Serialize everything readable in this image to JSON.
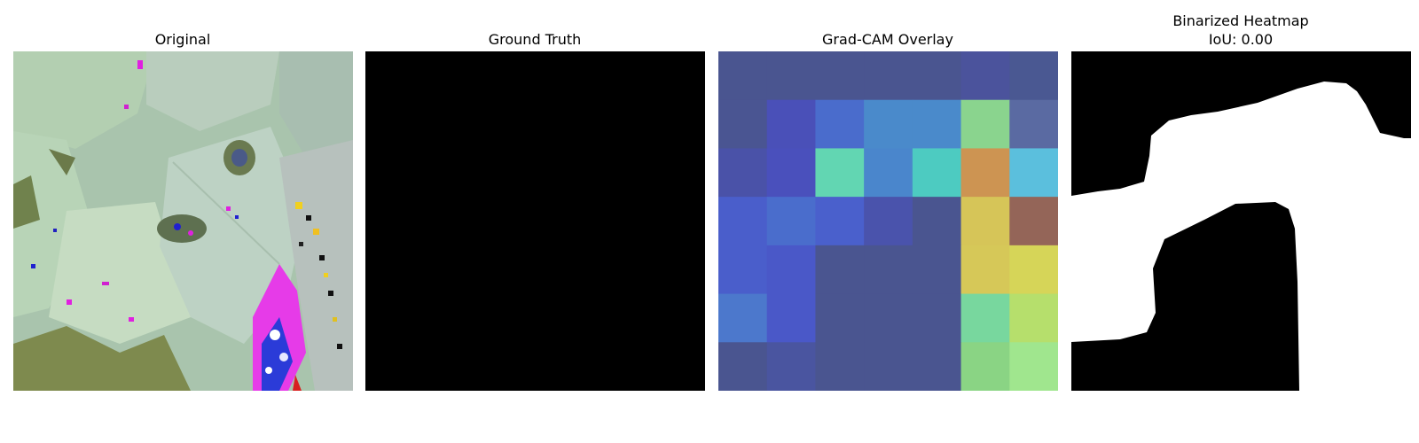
{
  "panels": {
    "original": {
      "title": "Original"
    },
    "ground_truth": {
      "title": "Ground Truth"
    },
    "gradcam": {
      "title": "Grad-CAM Overlay",
      "grid": [
        [
          "#4a5590",
          "#4a5590",
          "#4a5590",
          "#4a5590",
          "#4a5590",
          "#4b539c",
          "#4a5892"
        ],
        [
          "#4a5592",
          "#4a50b8",
          "#4a6ccc",
          "#4a8acb",
          "#4a8acb",
          "#8ad48e",
          "#5a6aa2"
        ],
        [
          "#4a52a8",
          "#4a50bc",
          "#62d6b2",
          "#4a86cc",
          "#4dcbc1",
          "#cd9452",
          "#5bbfdd"
        ],
        [
          "#4a5ecb",
          "#4a6dcc",
          "#4a60cc",
          "#4a53ac",
          "#4a5590",
          "#d6c558",
          "#946558"
        ],
        [
          "#4a5ecb",
          "#4a58c8",
          "#4a5590",
          "#4a5590",
          "#4a5590",
          "#d6c858",
          "#d6d558"
        ],
        [
          "#4c78cc",
          "#4a58c8",
          "#4a5590",
          "#4a5590",
          "#4a5590",
          "#78d79e",
          "#b6df6c"
        ],
        [
          "#4a5590",
          "#4a55a0",
          "#4a5590",
          "#4a5590",
          "#4a5590",
          "#8ad484",
          "#a0e68e"
        ]
      ]
    },
    "binarized": {
      "title_line1": "Binarized Heatmap",
      "title_line2": "IoU: 0.00"
    }
  }
}
